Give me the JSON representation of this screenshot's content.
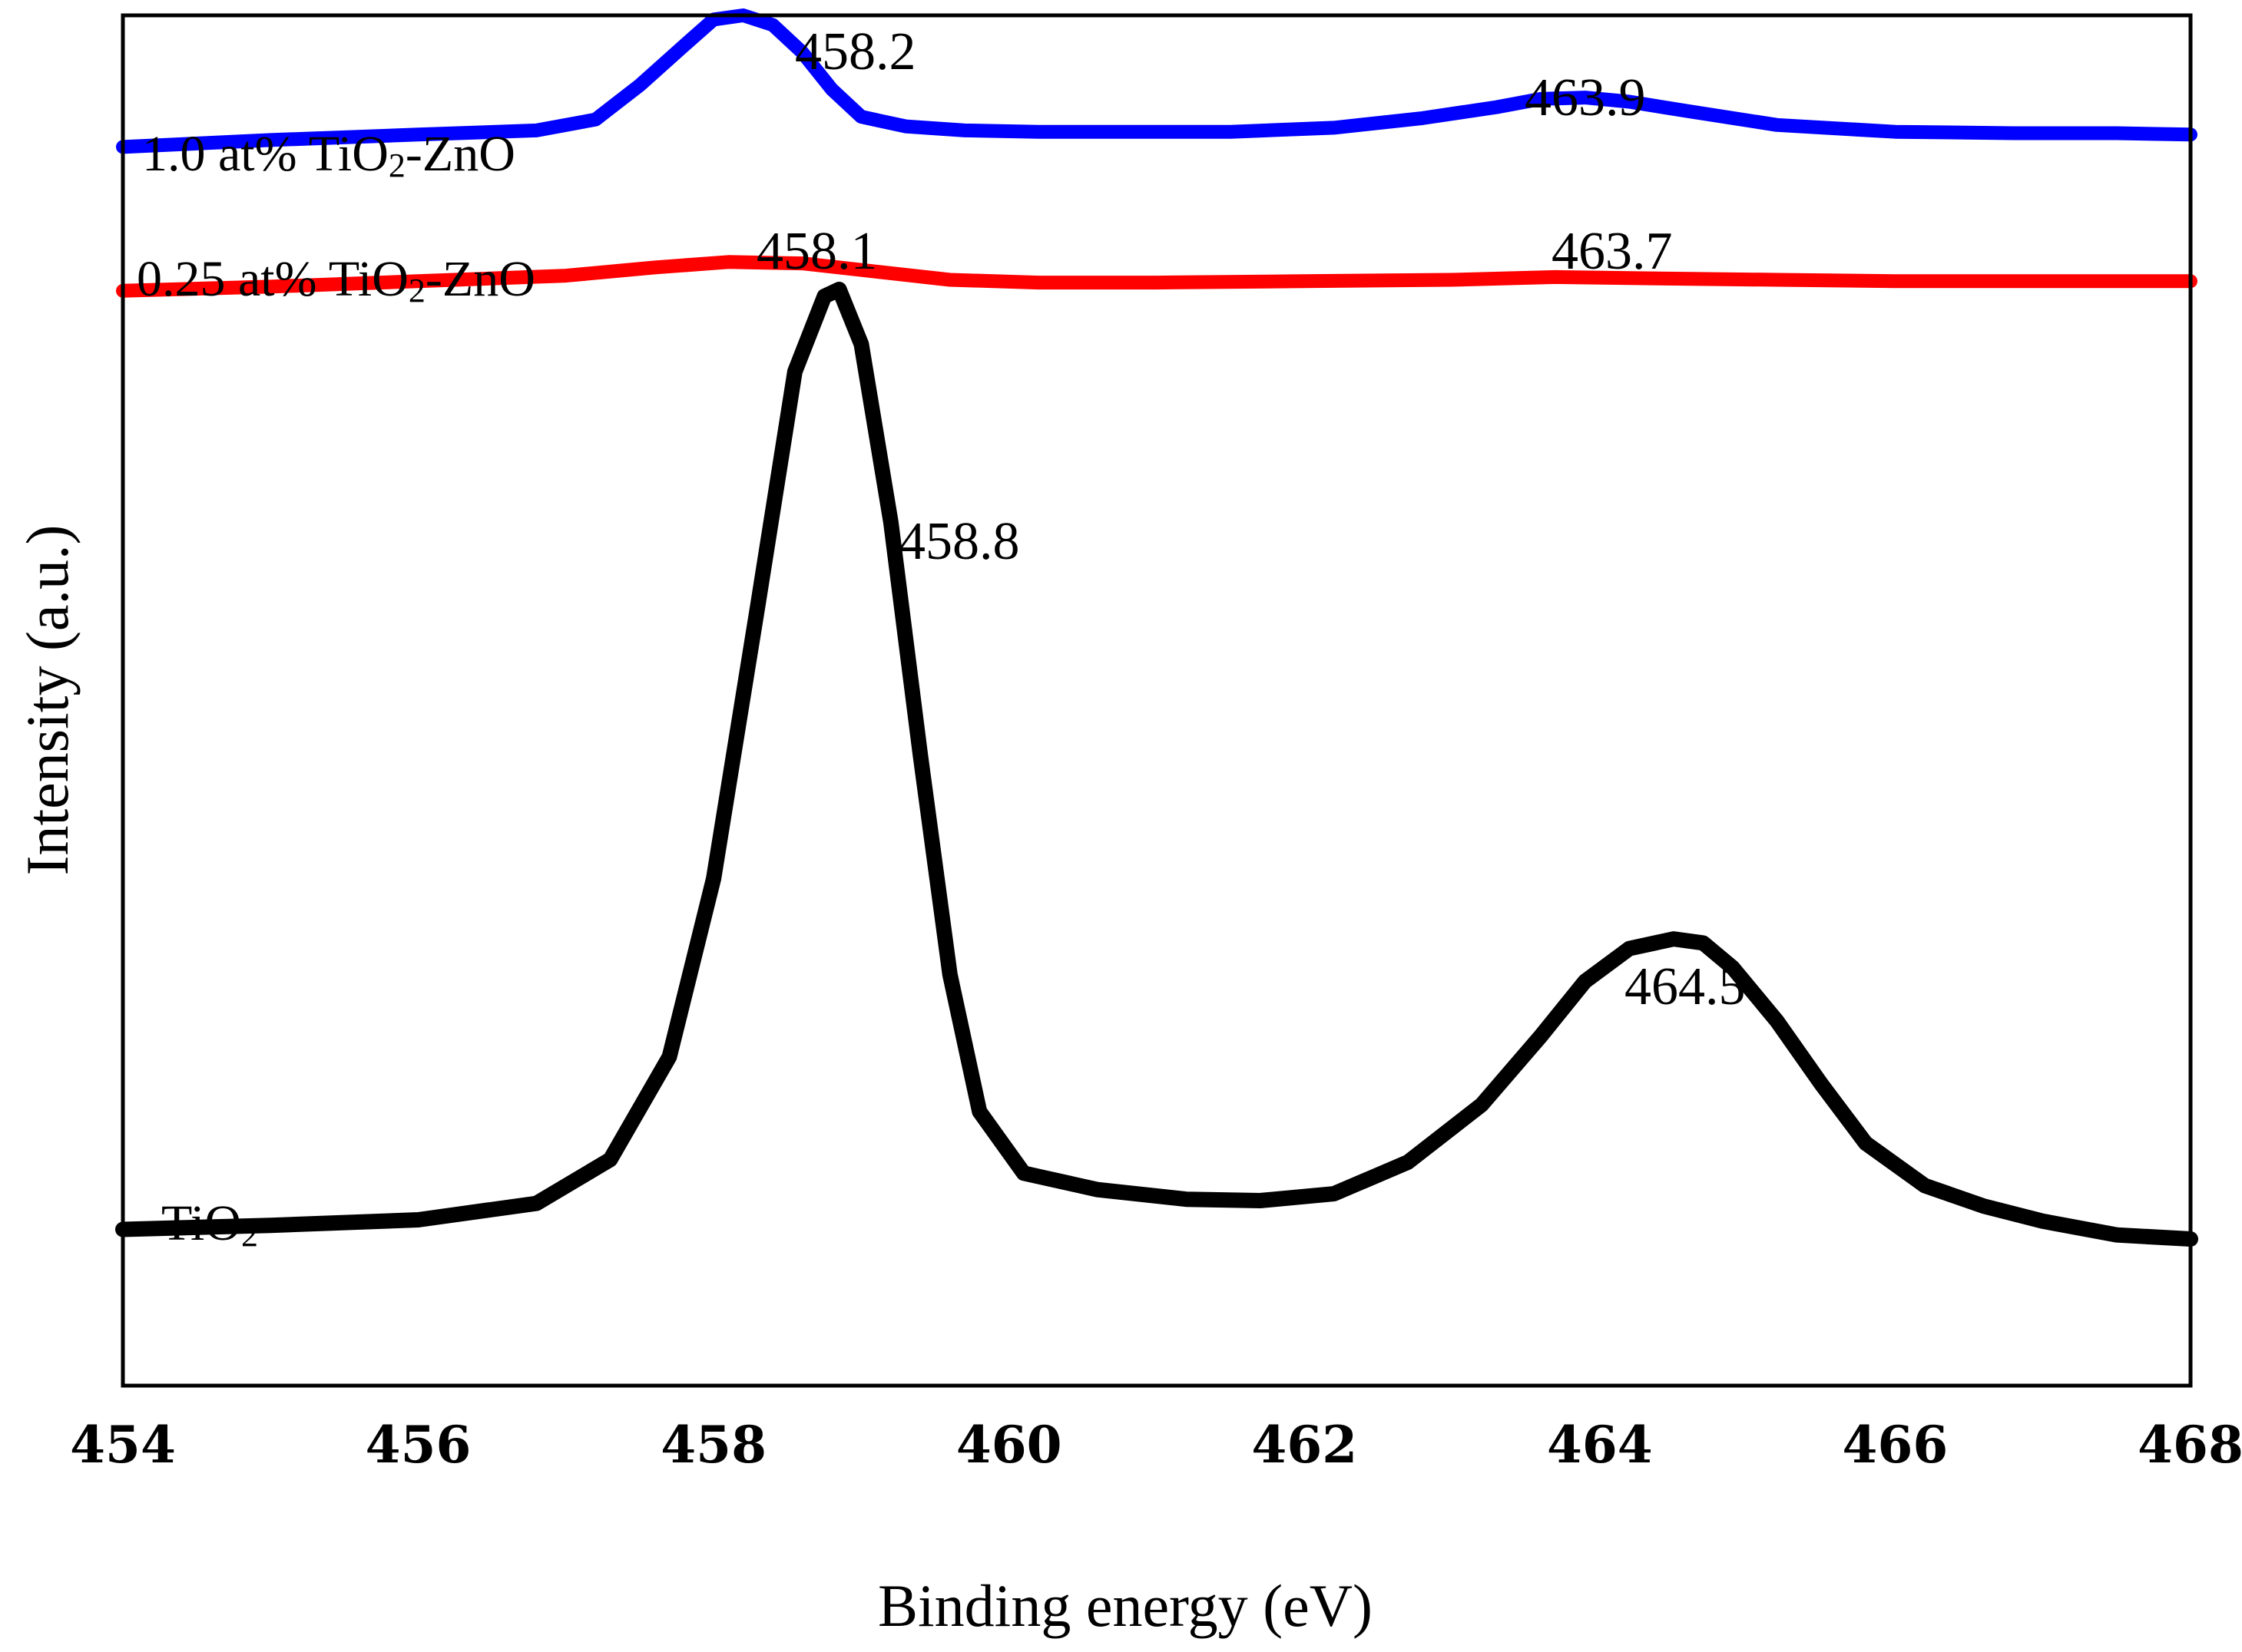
{
  "chart_data": {
    "type": "line",
    "title": "",
    "xlabel": "Binding energy (eV)",
    "ylabel": "Intensity (a.u.)",
    "xlim": [
      454,
      468
    ],
    "ylim": [
      0,
      100
    ],
    "x_ticks": [
      454,
      456,
      458,
      460,
      462,
      464,
      466,
      468
    ],
    "x_tick_labels": [
      "454",
      "456",
      "458",
      "460",
      "462",
      "464",
      "466",
      "468"
    ],
    "y_ticks": [],
    "grid": false,
    "legend": "none",
    "series": [
      {
        "name": "1.0 at% TiO2-ZnO",
        "label_main": "1.0 at% TiO",
        "label_sub": "2",
        "label_tail": "-ZnO",
        "color": "#0000ff",
        "x": [
          454.0,
          455.0,
          456.0,
          456.8,
          457.2,
          457.5,
          457.8,
          458.0,
          458.2,
          458.4,
          458.6,
          458.8,
          459.0,
          459.3,
          459.7,
          460.2,
          460.8,
          461.5,
          462.2,
          462.8,
          463.3,
          463.6,
          463.9,
          464.2,
          464.6,
          465.2,
          466.0,
          466.8,
          467.5,
          468.0
        ],
        "y": [
          90.4,
          90.9,
          91.3,
          91.6,
          92.4,
          94.9,
          97.8,
          99.7,
          100.0,
          99.3,
          97.3,
          94.6,
          92.6,
          91.9,
          91.6,
          91.5,
          91.5,
          91.5,
          91.8,
          92.5,
          93.3,
          93.9,
          94.0,
          93.7,
          93.0,
          92.0,
          91.5,
          91.4,
          91.4,
          91.3
        ],
        "peak_labels": [
          "458.2",
          "463.9"
        ]
      },
      {
        "name": "0.25 at% TiO2-ZnO",
        "label_main": "0.25 at% TiO",
        "label_sub": "2",
        "label_tail": "-ZnO",
        "color": "#ff0000",
        "x": [
          454.0,
          455.0,
          456.0,
          457.0,
          457.6,
          458.1,
          458.6,
          459.1,
          459.6,
          460.2,
          461.0,
          462.0,
          463.0,
          463.7,
          464.4,
          465.2,
          466.0,
          467.0,
          468.0
        ],
        "y": [
          79.9,
          80.2,
          80.6,
          81.0,
          81.6,
          82.0,
          81.9,
          81.3,
          80.7,
          80.5,
          80.5,
          80.6,
          80.7,
          80.9,
          80.8,
          80.7,
          80.6,
          80.6,
          80.6
        ],
        "peak_labels": [
          "458.1",
          "463.7"
        ]
      },
      {
        "name": "TiO2",
        "label_main": "TiO",
        "label_sub": "2",
        "label_tail": "",
        "color": "#000000",
        "x": [
          454.0,
          455.0,
          456.0,
          456.8,
          457.3,
          457.7,
          458.0,
          458.3,
          458.55,
          458.75,
          458.85,
          459.0,
          459.2,
          459.4,
          459.6,
          459.8,
          460.1,
          460.6,
          461.2,
          461.7,
          462.2,
          462.7,
          463.2,
          463.6,
          463.9,
          464.2,
          464.5,
          464.7,
          464.9,
          465.2,
          465.5,
          465.8,
          466.2,
          466.6,
          467.0,
          467.5,
          468.0
        ],
        "y": [
          11.4,
          11.7,
          12.1,
          13.3,
          16.5,
          24.0,
          37.0,
          57.0,
          74.0,
          79.5,
          80.0,
          76.0,
          63.0,
          46.0,
          30.0,
          20.0,
          15.5,
          14.3,
          13.6,
          13.5,
          14.0,
          16.3,
          20.5,
          25.5,
          29.5,
          31.9,
          32.6,
          32.3,
          30.5,
          26.6,
          22.0,
          17.7,
          14.6,
          13.1,
          12.0,
          11.0,
          10.7
        ],
        "peak_labels": [
          "458.8",
          "464.5"
        ]
      }
    ]
  }
}
